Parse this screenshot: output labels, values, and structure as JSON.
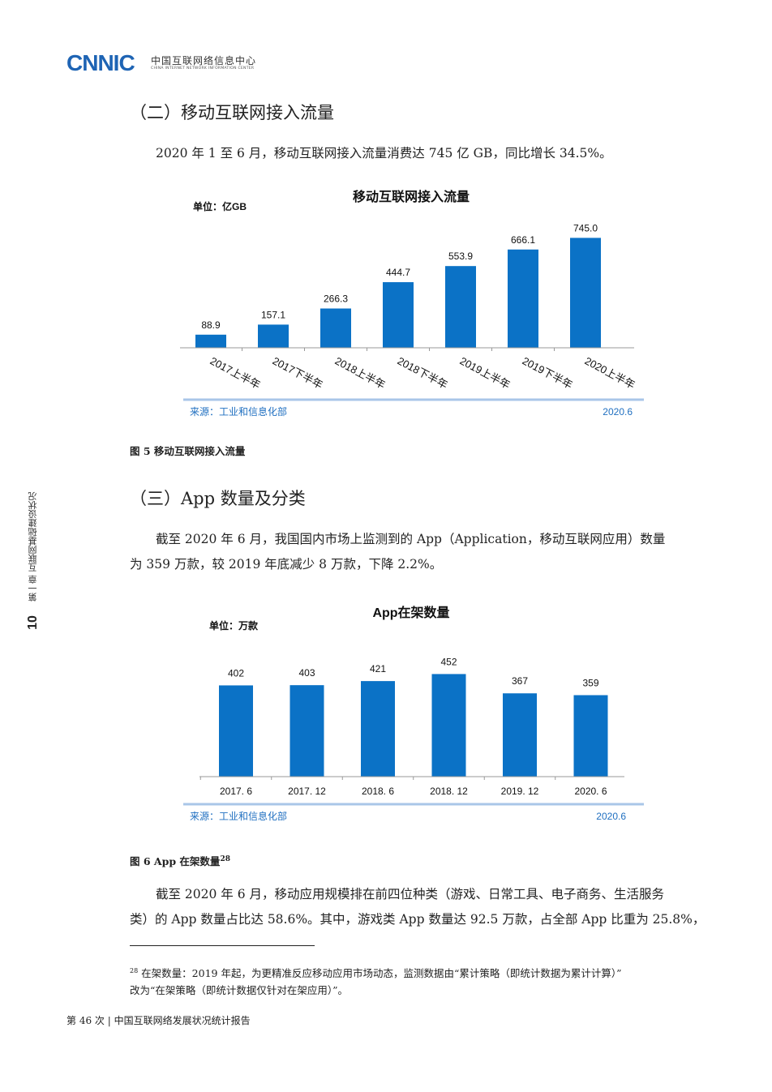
{
  "header": {
    "logo_text": "CNNIC",
    "org_cn": "中国互联网络信息中心",
    "org_en": "CHINA INTERNET NETWORK INFORMATION CENTER"
  },
  "sidebar": {
    "page_number": "10",
    "chapter_text": "第一章  互联网基础建设状况"
  },
  "section1": {
    "heading": "（二）移动互联网接入流量",
    "paragraph": "2020 年 1 至 6 月，移动互联网接入流量消费达 745 亿 GB，同比增长 34.5%。",
    "figure_caption": "图 5   移动互联网接入流量"
  },
  "section2": {
    "heading": "（三）App 数量及分类",
    "paragraph_line1": "截至 2020 年 6 月，我国国内市场上监测到的 App（Application，移动互联网应用）数量",
    "paragraph_line2": "为 359 万款，较 2019 年底减少 8 万款，下降 2.2%。",
    "figure_caption": "图 6   App 在架数量",
    "figure_caption_sup": "28",
    "paragraph2_line1": "截至 2020 年 6 月，移动应用规模排在前四位种类（游戏、日常工具、电子商务、生活服务",
    "paragraph2_line2": "类）的 App 数量占比达 58.6%。其中，游戏类 App 数量达 92.5 万款，占全部 App 比重为 25.8%，"
  },
  "footnote": {
    "marker": "28",
    "line1": "在架数量：2019 年起，为更精准反应移动应用市场动态，监测数据由“累计策略（即统计数据为累计计算）”",
    "line2": "改为“在架策略（即统计数据仅针对在架应用）”。"
  },
  "footer": {
    "text": "第 46 次 | 中国互联网络发展状况统计报告"
  },
  "chart_data": [
    {
      "type": "bar",
      "title": "移动互联网接入流量",
      "unit_label": "单位：亿GB",
      "categories": [
        "2017上半年",
        "2017下半年",
        "2018上半年",
        "2018下半年",
        "2019上半年",
        "2019下半年",
        "2020上半年"
      ],
      "values": [
        88.9,
        157.1,
        266.3,
        444.7,
        553.9,
        666.1,
        745.0
      ],
      "value_labels": [
        "88.9",
        "157.1",
        "266.3",
        "444.7",
        "553.9",
        "666.1",
        "745.0"
      ],
      "source": "来源：工业和信息化部",
      "date": "2020.6",
      "bar_color": "#0b72c6"
    },
    {
      "type": "bar",
      "title": "App在架数量",
      "unit_label": "单位：万款",
      "categories": [
        "2017. 6",
        "2017. 12",
        "2018. 6",
        "2018. 12",
        "2019. 12",
        "2020. 6"
      ],
      "values": [
        402,
        403,
        421,
        452,
        367,
        359
      ],
      "value_labels": [
        "402",
        "403",
        "421",
        "452",
        "367",
        "359"
      ],
      "source": "来源：工业和信息化部",
      "date": "2020.6",
      "bar_color": "#0b72c6"
    }
  ]
}
